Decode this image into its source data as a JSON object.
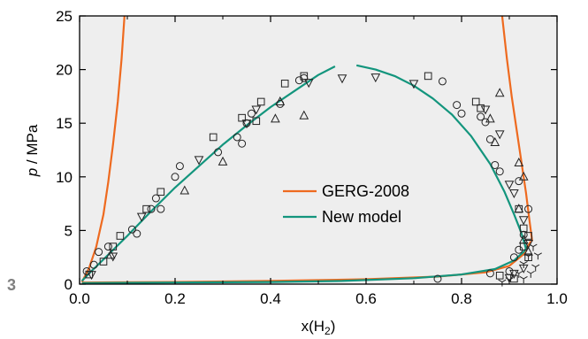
{
  "panel_label": "3",
  "chart_data": {
    "type": "scatter",
    "xlabel_main": "x(H",
    "xlabel_sub": "2",
    "xlabel_end": ")",
    "ylabel_var": "p",
    "ylabel_unit": " / MPa",
    "xlim": [
      0,
      1
    ],
    "ylim": [
      0,
      25
    ],
    "xticks": [
      0,
      0.2,
      0.4,
      0.6,
      0.8,
      1.0
    ],
    "xtick_labels": [
      "0.0",
      "0.2",
      "0.4",
      "0.6",
      "0.8",
      "1.0"
    ],
    "yticks": [
      0,
      5,
      10,
      15,
      20,
      25
    ],
    "ytick_labels": [
      "0",
      "5",
      "10",
      "15",
      "20",
      "25"
    ],
    "background": "#eeeeee",
    "legend": {
      "placement": "center",
      "entries": [
        {
          "label": "GERG-2008",
          "color": "#ee6a1f"
        },
        {
          "label": "New model",
          "color": "#13957d"
        }
      ]
    },
    "lines": [
      {
        "name": "GERG-2008",
        "color": "#ee6a1f",
        "segments": [
          [
            [
              0.005,
              0.2
            ],
            [
              0.02,
              1.5
            ],
            [
              0.035,
              3.5
            ],
            [
              0.05,
              6.5
            ],
            [
              0.06,
              9.5
            ],
            [
              0.07,
              13
            ],
            [
              0.08,
              17
            ],
            [
              0.088,
              21
            ],
            [
              0.094,
              25
            ]
          ],
          [
            [
              0.885,
              25
            ],
            [
              0.895,
              21
            ],
            [
              0.905,
              17.5
            ],
            [
              0.915,
              14.5
            ],
            [
              0.925,
              11.5
            ],
            [
              0.935,
              8.5
            ],
            [
              0.942,
              6
            ],
            [
              0.948,
              4
            ]
          ],
          [
            [
              0.005,
              0.15
            ],
            [
              0.2,
              0.2
            ],
            [
              0.4,
              0.3
            ],
            [
              0.6,
              0.45
            ],
            [
              0.75,
              0.7
            ],
            [
              0.85,
              1.1
            ],
            [
              0.9,
              1.7
            ],
            [
              0.93,
              2.8
            ],
            [
              0.945,
              4
            ]
          ]
        ]
      },
      {
        "name": "New model",
        "color": "#13957d",
        "segments": [
          [
            [
              0.005,
              0.3
            ],
            [
              0.02,
              1
            ],
            [
              0.05,
              2.3
            ],
            [
              0.1,
              4.5
            ],
            [
              0.15,
              6.8
            ],
            [
              0.2,
              9
            ],
            [
              0.25,
              11
            ],
            [
              0.3,
              13
            ],
            [
              0.35,
              14.8
            ],
            [
              0.4,
              16.5
            ],
            [
              0.45,
              18
            ],
            [
              0.5,
              19.5
            ],
            [
              0.535,
              20.3
            ]
          ],
          [
            [
              0.58,
              20.4
            ],
            [
              0.62,
              20
            ],
            [
              0.66,
              19.4
            ],
            [
              0.7,
              18.5
            ],
            [
              0.74,
              17.3
            ],
            [
              0.78,
              15.8
            ],
            [
              0.82,
              13.8
            ],
            [
              0.86,
              11.2
            ],
            [
              0.89,
              8.6
            ],
            [
              0.91,
              6.5
            ],
            [
              0.925,
              4.8
            ],
            [
              0.935,
              3.3
            ]
          ],
          [
            [
              0.005,
              0.1
            ],
            [
              0.2,
              0.15
            ],
            [
              0.4,
              0.2
            ],
            [
              0.55,
              0.3
            ],
            [
              0.7,
              0.55
            ],
            [
              0.8,
              0.9
            ],
            [
              0.87,
              1.4
            ],
            [
              0.91,
              2.2
            ],
            [
              0.93,
              3
            ],
            [
              0.935,
              3.3
            ]
          ]
        ]
      }
    ],
    "markers": {
      "circle": [
        [
          0.015,
          1.2
        ],
        [
          0.03,
          1.8
        ],
        [
          0.04,
          3
        ],
        [
          0.06,
          3.5
        ],
        [
          0.11,
          5.1
        ],
        [
          0.12,
          4.7
        ],
        [
          0.15,
          7
        ],
        [
          0.16,
          8
        ],
        [
          0.17,
          7
        ],
        [
          0.2,
          10
        ],
        [
          0.21,
          11
        ],
        [
          0.29,
          12.3
        ],
        [
          0.33,
          13.7
        ],
        [
          0.34,
          13.1
        ],
        [
          0.35,
          15
        ],
        [
          0.36,
          15.9
        ],
        [
          0.42,
          16.8
        ],
        [
          0.46,
          19
        ],
        [
          0.47,
          19.2
        ],
        [
          0.75,
          0.5
        ],
        [
          0.76,
          18.9
        ],
        [
          0.79,
          16.7
        ],
        [
          0.8,
          15.9
        ],
        [
          0.84,
          15.6
        ],
        [
          0.85,
          15.1
        ],
        [
          0.86,
          13.5
        ],
        [
          0.87,
          11.1
        ],
        [
          0.88,
          10.5
        ],
        [
          0.86,
          1.0
        ],
        [
          0.9,
          1.2
        ],
        [
          0.91,
          2.5
        ],
        [
          0.92,
          3.2
        ],
        [
          0.93,
          4.6
        ],
        [
          0.94,
          7
        ],
        [
          0.92,
          9.6
        ]
      ],
      "square": [
        [
          0.02,
          0.9
        ],
        [
          0.05,
          2.1
        ],
        [
          0.07,
          3.5
        ],
        [
          0.085,
          4.5
        ],
        [
          0.14,
          7
        ],
        [
          0.17,
          8.6
        ],
        [
          0.28,
          13.7
        ],
        [
          0.34,
          15.5
        ],
        [
          0.37,
          15.2
        ],
        [
          0.38,
          17
        ],
        [
          0.43,
          18.7
        ],
        [
          0.47,
          19.4
        ],
        [
          0.73,
          19.4
        ],
        [
          0.83,
          17
        ],
        [
          0.84,
          16.4
        ],
        [
          0.92,
          7
        ],
        [
          0.93,
          5.2
        ],
        [
          0.94,
          4.5
        ],
        [
          0.93,
          3.5
        ],
        [
          0.94,
          2.5
        ],
        [
          0.88,
          0.8
        ],
        [
          0.91,
          0.5
        ]
      ],
      "triangle_up": [
        [
          0.065,
          2.7
        ],
        [
          0.22,
          8.7
        ],
        [
          0.3,
          11.4
        ],
        [
          0.41,
          15.4
        ],
        [
          0.42,
          17
        ],
        [
          0.47,
          15.7
        ],
        [
          0.88,
          17.8
        ],
        [
          0.86,
          15.4
        ],
        [
          0.87,
          13.2
        ],
        [
          0.92,
          11.3
        ],
        [
          0.93,
          10
        ],
        [
          0.92,
          7
        ],
        [
          0.93,
          4.1
        ],
        [
          0.94,
          3
        ]
      ],
      "triangle_down": [
        [
          0.025,
          0.9
        ],
        [
          0.07,
          2.6
        ],
        [
          0.13,
          6.3
        ],
        [
          0.25,
          11.6
        ],
        [
          0.35,
          15
        ],
        [
          0.37,
          16.3
        ],
        [
          0.48,
          18.8
        ],
        [
          0.55,
          19.2
        ],
        [
          0.62,
          19.3
        ],
        [
          0.7,
          18.7
        ],
        [
          0.85,
          16.3
        ],
        [
          0.88,
          14
        ],
        [
          0.9,
          9.3
        ],
        [
          0.91,
          8.5
        ],
        [
          0.93,
          6
        ],
        [
          0.94,
          3.8
        ],
        [
          0.93,
          1.5
        ],
        [
          0.91,
          1
        ],
        [
          0.9,
          0.6
        ]
      ],
      "tri_star": [
        [
          0.885,
          0.2
        ],
        [
          0.9,
          0.4
        ],
        [
          0.92,
          1
        ],
        [
          0.93,
          1.9
        ],
        [
          0.94,
          2.6
        ],
        [
          0.95,
          3.5
        ],
        [
          0.96,
          2.7
        ],
        [
          0.955,
          1.6
        ],
        [
          0.945,
          1
        ],
        [
          0.93,
          0.5
        ]
      ]
    }
  }
}
